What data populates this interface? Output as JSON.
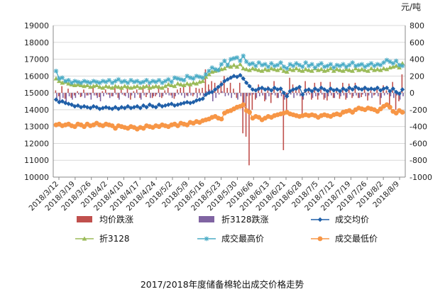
{
  "chart_data": {
    "type": "line",
    "title": "2017/2018年度储备棉轮出成交价格走势",
    "ylabel_right": "元/吨",
    "ylim_left": [
      10000,
      19000
    ],
    "ylim_right": [
      -1000,
      800
    ],
    "yticks_left": [
      "10000",
      "11000",
      "12000",
      "13000",
      "14000",
      "15000",
      "16000",
      "17000",
      "18000",
      "19000"
    ],
    "yticks_right": [
      "-1000",
      "-800",
      "-600",
      "-400",
      "-200",
      "0",
      "200",
      "400",
      "600",
      "800"
    ],
    "x_tick_labels": [
      "2018/3/12",
      "2018/3/19",
      "2018/3/26",
      "2018/4/2",
      "2018/4/10",
      "2018/4/17",
      "2018/4/24",
      "2018/5/2",
      "2018/5/9",
      "2018/5/16",
      "2018/5/23",
      "2018/5/30",
      "2018/6/6",
      "2018/6/13",
      "2018/6/21",
      "2018/6/28",
      "2018/7/5",
      "2018/7/12",
      "2018/7/19",
      "2018/7/26",
      "2018/8/2",
      "2018/8/9"
    ],
    "legend": [
      "均价跌涨",
      "折3128跌涨",
      "成交均价",
      "折3128",
      "成交最高价",
      "成交最低价"
    ],
    "colors": {
      "avg_change": "#c0504d",
      "zhe_change": "#8064a2",
      "avg_price": "#1f5fa8",
      "zhe3128": "#9bbb59",
      "max_price": "#4bacc6",
      "min_price": "#f79646"
    },
    "grid": "horizontal",
    "legend_position": "bottom",
    "series": [
      {
        "name": "成交均价",
        "axis": "left",
        "values": [
          14600,
          14450,
          14500,
          14400,
          14350,
          14300,
          14200,
          14250,
          14150,
          14200,
          14150,
          14100,
          14200,
          14150,
          14050,
          14100,
          14150,
          14100,
          14050,
          14150,
          14050,
          14150,
          14100,
          14200,
          14100,
          14150,
          14200,
          14100,
          14250,
          14150,
          14300,
          14200,
          14150,
          14300,
          14200,
          14250,
          14300,
          14350,
          14250,
          14300,
          14350,
          14400,
          14450,
          14400,
          14450,
          14550,
          14600,
          14650,
          14900,
          15000,
          15050,
          15200,
          15350,
          15500,
          15700,
          15800,
          15900,
          16000,
          15950,
          16050,
          15850,
          15600,
          15400,
          15200,
          15150,
          15250,
          15300,
          15200,
          15250,
          15150,
          15300,
          15200,
          15250,
          15000,
          14800,
          15100,
          15200,
          15250,
          15350,
          14900,
          15150,
          15200,
          15100,
          15250,
          15150,
          15300,
          15200,
          15100,
          15250,
          15150,
          15200,
          15100,
          15250,
          15150,
          15300,
          15200,
          15350,
          15250,
          15200,
          15300,
          15200,
          15250,
          15200,
          15300,
          15150,
          15250,
          15300,
          15100,
          15250,
          15050,
          14950,
          15200
        ]
      },
      {
        "name": "折3128",
        "axis": "left",
        "values": [
          15850,
          15700,
          15600,
          15650,
          15550,
          15500,
          15450,
          15500,
          15450,
          15400,
          15450,
          15350,
          15400,
          15450,
          15350,
          15300,
          15400,
          15350,
          15300,
          15400,
          15350,
          15300,
          15400,
          15350,
          15300,
          15350,
          15400,
          15300,
          15350,
          15400,
          15300,
          15350,
          15400,
          15350,
          15300,
          15400,
          15500,
          15450,
          15400,
          15550,
          15500,
          15450,
          15550,
          15500,
          15600,
          15550,
          15650,
          15700,
          15950,
          16100,
          16250,
          16300,
          16350,
          16400,
          16450,
          16600,
          16550,
          16650,
          16550,
          16700,
          16450,
          16400,
          16350,
          16450,
          16400,
          16350,
          16300,
          16400,
          16350,
          16450,
          16400,
          16350,
          16450,
          16300,
          16250,
          16400,
          16350,
          16450,
          16350,
          16300,
          16400,
          16350,
          16300,
          16450,
          16350,
          16400,
          16300,
          16350,
          16450,
          16300,
          16400,
          16350,
          16300,
          16400,
          16350,
          16300,
          16450,
          16350,
          16400,
          16350,
          16300,
          16450,
          16350,
          16400,
          16350,
          16450,
          16400,
          16500,
          16550,
          16600,
          16500,
          16750
        ]
      },
      {
        "name": "成交最高价",
        "axis": "left",
        "values": [
          16300,
          15850,
          15900,
          15700,
          15750,
          15600,
          15700,
          15650,
          15600,
          15700,
          15650,
          15600,
          15700,
          15650,
          15600,
          15700,
          15650,
          15750,
          15600,
          15700,
          15800,
          15650,
          15700,
          15600,
          15750,
          15650,
          15700,
          15600,
          15650,
          15750,
          15600,
          15700,
          15650,
          15750,
          15600,
          15700,
          15800,
          15650,
          15900,
          15850,
          15800,
          15750,
          16000,
          15900,
          15850,
          16000,
          15950,
          15900,
          16100,
          16300,
          16500,
          16400,
          16350,
          16700,
          16900,
          16650,
          17000,
          17050,
          17100,
          16900,
          17200,
          16850,
          16700,
          16750,
          16600,
          16800,
          16650,
          16700,
          16550,
          16750,
          16600,
          16650,
          16800,
          16550,
          16450,
          16700,
          16600,
          16750,
          16650,
          16550,
          16800,
          16600,
          16700,
          16500,
          16650,
          16750,
          16550,
          16600,
          16700,
          16500,
          16650,
          16600,
          16700,
          16550,
          16650,
          16800,
          16600,
          16650,
          16700,
          16550,
          16650,
          16750,
          16600,
          16700,
          16650,
          16800,
          16950,
          16850,
          16750,
          16900,
          16650,
          16600
        ]
      },
      {
        "name": "成交最低价",
        "axis": "left",
        "values": [
          13100,
          13150,
          13050,
          13100,
          13150,
          13050,
          13000,
          13150,
          13100,
          13000,
          13150,
          13050,
          13100,
          13200,
          13100,
          13050,
          13150,
          13100,
          13050,
          12900,
          13050,
          13000,
          12950,
          12900,
          13000,
          12950,
          12850,
          12950,
          12900,
          13050,
          13000,
          12950,
          13050,
          13000,
          13100,
          13050,
          13000,
          13100,
          13150,
          13050,
          13200,
          13150,
          13100,
          13250,
          13200,
          13300,
          13250,
          13350,
          13400,
          13450,
          13550,
          13600,
          13500,
          13450,
          13800,
          13900,
          13950,
          14050,
          14150,
          14200,
          14300,
          13950,
          13850,
          13500,
          13600,
          13550,
          13400,
          13500,
          13600,
          13550,
          13650,
          13700,
          13750,
          13800,
          13850,
          13750,
          13700,
          13650,
          13600,
          13650,
          13700,
          13650,
          13700,
          13650,
          13550,
          13650,
          13700,
          13650,
          13600,
          13700,
          13750,
          13700,
          13850,
          13900,
          13950,
          13850,
          14000,
          14100,
          14050,
          14000,
          14100,
          14050,
          14000,
          13900,
          14050,
          14200,
          14300,
          14150,
          13900,
          13800,
          13950,
          13850
        ]
      },
      {
        "name": "均价跌涨",
        "axis": "right",
        "values": [
          30,
          -40,
          80,
          -70,
          50,
          -60,
          -30,
          20,
          -50,
          40,
          -30,
          -20,
          60,
          -30,
          -50,
          20,
          40,
          -20,
          -40,
          70,
          -60,
          80,
          -30,
          60,
          -80,
          20,
          40,
          -60,
          90,
          -50,
          100,
          -60,
          -40,
          90,
          -60,
          30,
          60,
          -30,
          -70,
          40,
          60,
          70,
          -30,
          80,
          -40,
          60,
          50,
          60,
          280,
          100,
          140,
          120,
          60,
          140,
          200,
          60,
          120,
          50,
          -60,
          120,
          -480,
          -520,
          -860,
          -200,
          -80,
          100,
          50,
          -100,
          80,
          -120,
          140,
          -60,
          50,
          -680,
          -240,
          180,
          100,
          50,
          80,
          -280,
          140,
          40,
          -80,
          120,
          -80,
          130,
          -80,
          -90,
          130,
          -60,
          40,
          -70,
          120,
          -80,
          110,
          -60,
          120,
          -60,
          -50,
          80,
          -90,
          50,
          -30,
          80,
          -140,
          90,
          30,
          -180,
          130,
          -200,
          -100,
          220
        ]
      },
      {
        "name": "折3128跌涨",
        "axis": "right",
        "values": [
          -80,
          -100,
          -60,
          -120,
          -40,
          -80,
          -60,
          -20,
          -40,
          -60,
          -30,
          -80,
          -30,
          -60,
          -100,
          -40,
          -20,
          -60,
          -40,
          -20,
          -80,
          -20,
          -40,
          -60,
          -30,
          -60,
          -20,
          -80,
          -30,
          -20,
          -60,
          -40,
          -20,
          -50,
          -40,
          -20,
          -30,
          -60,
          -40,
          -20,
          -30,
          -60,
          -40,
          -30,
          -20,
          -60,
          -30,
          -40,
          20,
          40,
          -100,
          -60,
          -20,
          20,
          -40,
          -30,
          -60,
          -20,
          -80,
          -40,
          -160,
          -40,
          -30,
          -20,
          -60,
          -40,
          -30,
          -80,
          -40,
          -20,
          -30,
          -60,
          -40,
          -80,
          -40,
          -20,
          -60,
          -30,
          -40,
          -80,
          -30,
          -20,
          -60,
          -40,
          -30,
          -20,
          -60,
          -40,
          -30,
          -60,
          -20,
          -40,
          -30,
          -60,
          -20,
          -40,
          -30,
          -60,
          -20,
          -40,
          -30,
          -60,
          -20,
          -40,
          -60,
          -30,
          -20,
          -40,
          -60,
          -30,
          -80,
          -40
        ]
      }
    ]
  }
}
